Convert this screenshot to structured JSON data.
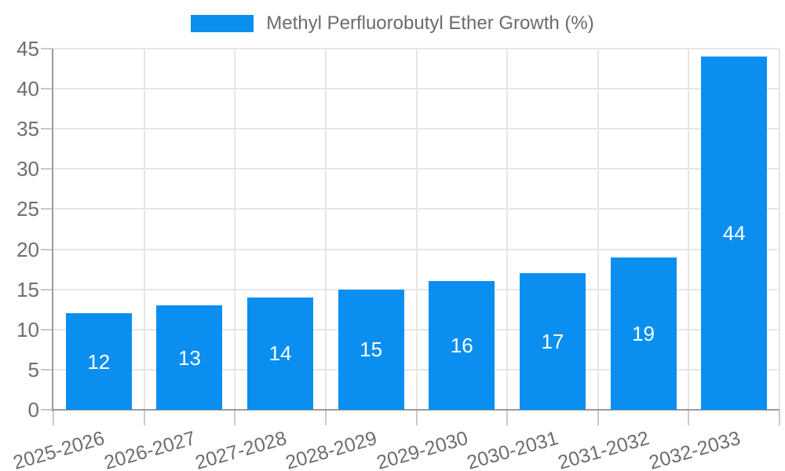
{
  "chart_data": {
    "type": "bar",
    "categories": [
      "2025-2026",
      "2026-2027",
      "2027-2028",
      "2028-2029",
      "2029-2030",
      "2030-2031",
      "2031-2032",
      "2032-2033"
    ],
    "series": [
      {
        "name": "Methyl Perfluorobutyl Ether Growth (%)",
        "color": "#0a8ff0",
        "values": [
          12,
          13,
          14,
          15,
          16,
          17,
          19,
          44
        ]
      }
    ],
    "value_labels": [
      "12",
      "13",
      "14",
      "15",
      "16",
      "17",
      "19",
      "44"
    ],
    "title": "",
    "xlabel": "",
    "ylabel": "",
    "ylim": [
      0,
      45
    ],
    "ytick_step": 5,
    "ytick_labels": [
      "0",
      "5",
      "10",
      "15",
      "20",
      "25",
      "30",
      "35",
      "40",
      "45"
    ],
    "grid": true,
    "legend_position": "top-center"
  },
  "colors": {
    "bar": "#0a8ff0",
    "axis_line": "#9b9b9b",
    "grid_line": "#e6e6e6",
    "tick": "#c9c9c9",
    "axis_label": "#6e6e6e",
    "legend_text": "#6b6b6b",
    "value_label": "#ffffff",
    "background": "#ffffff"
  }
}
